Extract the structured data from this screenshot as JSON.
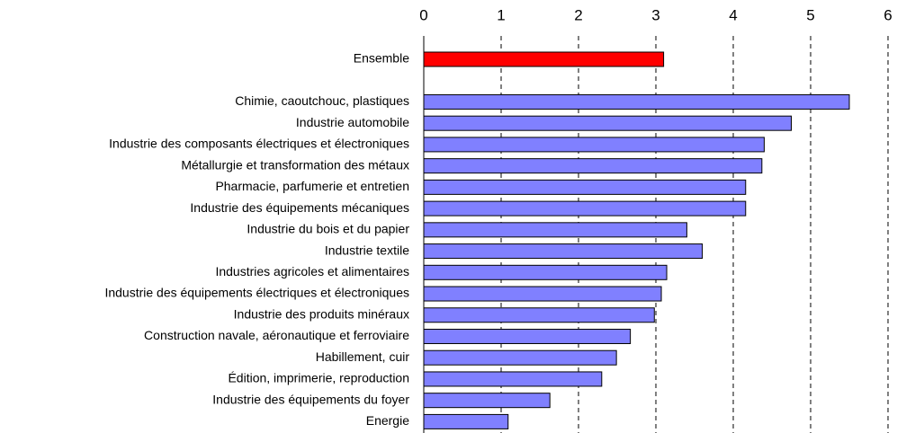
{
  "chart_data": {
    "type": "hbar",
    "categories": [
      "Ensemble",
      null,
      "Chimie, caoutchouc, plastiques",
      "Industrie automobile",
      "Industrie des composants électriques et électroniques",
      "Métallurgie et transformation des métaux",
      "Pharmacie, parfumerie et entretien",
      "Industrie des équipements mécaniques",
      "Industrie du bois et du papier",
      "Industrie textile",
      "Industries agricoles et alimentaires",
      "Industrie des équipements électriques et électroniques",
      "Industrie des produits minéraux",
      "Construction navale, aéronautique et ferroviaire",
      "Habillement, cuir",
      "Édition, imprimerie, reproduction",
      "Industrie des équipements du foyer",
      "Energie"
    ],
    "values": [
      3.1,
      null,
      5.5,
      4.75,
      4.4,
      4.37,
      4.16,
      4.16,
      3.4,
      3.6,
      3.14,
      3.07,
      2.98,
      2.67,
      2.49,
      2.3,
      1.63,
      1.09
    ],
    "colors": [
      "#ff0000",
      null,
      "#8080ff",
      "#8080ff",
      "#8080ff",
      "#8080ff",
      "#8080ff",
      "#8080ff",
      "#8080ff",
      "#8080ff",
      "#8080ff",
      "#8080ff",
      "#8080ff",
      "#8080ff",
      "#8080ff",
      "#8080ff",
      "#8080ff",
      "#8080ff"
    ],
    "xlim": [
      0,
      6
    ],
    "xticks": [
      0,
      1,
      2,
      3,
      4,
      5,
      6
    ],
    "grid": true
  }
}
